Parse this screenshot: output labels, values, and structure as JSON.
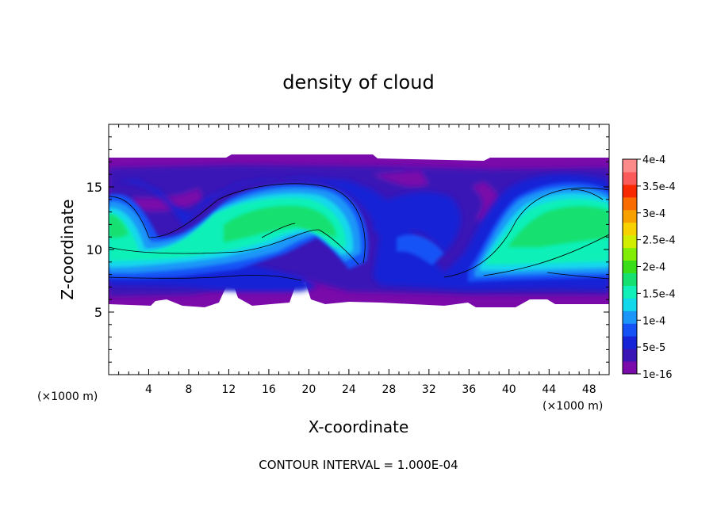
{
  "chart_data": {
    "type": "heatmap",
    "title": "density of cloud",
    "xlabel": "X-coordinate",
    "ylabel": "Z-coordinate",
    "x_unit": "(×1000 m)",
    "y_unit": "(×1000 m)",
    "xlim": [
      0,
      50
    ],
    "ylim": [
      0,
      20
    ],
    "x_ticks": [
      "4",
      "8",
      "12",
      "16",
      "20",
      "24",
      "28",
      "32",
      "36",
      "40",
      "44",
      "48"
    ],
    "y_ticks": [
      "5",
      "10",
      "15"
    ],
    "footer": "CONTOUR INTERVAL = 1.000E-04",
    "colorbar": {
      "levels": [
        "1e-16",
        "5e-5",
        "1e-4",
        "1.5e-4",
        "2e-4",
        "2.5e-4",
        "3e-4",
        "3.5e-4",
        "4e-4"
      ],
      "colors": [
        "#7a0aaa",
        "#3a16b6",
        "#1424d6",
        "#1452f6",
        "#1a96f8",
        "#12d8ec",
        "#10f0b8",
        "#16e070",
        "#3ade18",
        "#82ee08",
        "#d2ee00",
        "#f8d200",
        "#f8a000",
        "#f86c00",
        "#f82800",
        "#fa5a5a",
        "#fc8a8a"
      ]
    },
    "cloud_layer_z": [
      5.5,
      17.2
    ]
  }
}
